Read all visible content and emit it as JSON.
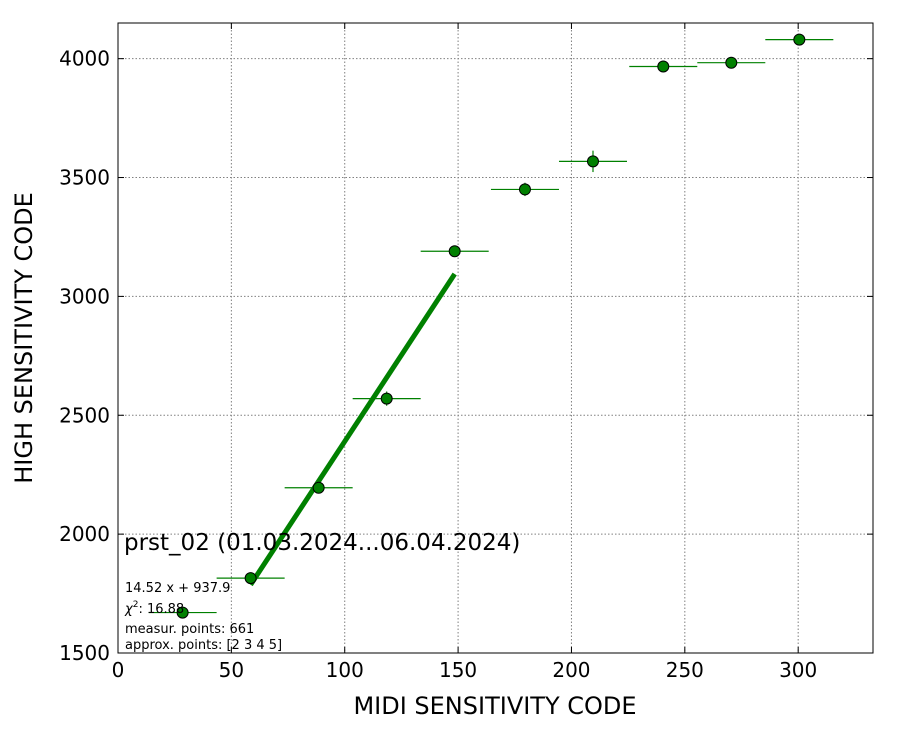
{
  "chart_data": {
    "type": "scatter",
    "title": "prst_02 (01.03.2024...06.04.2024)",
    "xlabel": "MIDI SENSITIVITY CODE",
    "ylabel": "HIGH SENSITIVITY CODE",
    "xlim": [
      0,
      333
    ],
    "ylim": [
      1500,
      4150
    ],
    "xticks": [
      0,
      50,
      100,
      150,
      200,
      250,
      300
    ],
    "yticks": [
      1500,
      2000,
      2500,
      3000,
      3500,
      4000
    ],
    "grid": true,
    "series": [
      {
        "type": "errorbar-scatter",
        "color": "#008000",
        "points": [
          {
            "x": 28.5,
            "y": 1670,
            "xerr": 15,
            "yerr": 10
          },
          {
            "x": 58.5,
            "y": 1815,
            "xerr": 15,
            "yerr": 12
          },
          {
            "x": 88.5,
            "y": 2195,
            "xerr": 15,
            "yerr": 12
          },
          {
            "x": 118.5,
            "y": 2570,
            "xerr": 15,
            "yerr": 30
          },
          {
            "x": 148.5,
            "y": 3190,
            "xerr": 15,
            "yerr": 22
          },
          {
            "x": 179.5,
            "y": 3450,
            "xerr": 15,
            "yerr": 28
          },
          {
            "x": 209.5,
            "y": 3568,
            "xerr": 15,
            "yerr": 45
          },
          {
            "x": 240.5,
            "y": 3967,
            "xerr": 15,
            "yerr": 10
          },
          {
            "x": 270.5,
            "y": 3983,
            "xerr": 15,
            "yerr": 10
          },
          {
            "x": 300.5,
            "y": 4080,
            "xerr": 15,
            "yerr": 10
          }
        ]
      },
      {
        "type": "fit-line",
        "color": "#008000",
        "slope": 14.52,
        "intercept": 937.9,
        "x_range": [
          58.5,
          148.5
        ]
      }
    ],
    "annotations": {
      "fit": "14.52 x + 937.9",
      "chi_symbol": "χ",
      "chi_power": "2",
      "chi_value": ": 16.88",
      "measur": "measur. points: 661",
      "approx": "approx. points: [2 3 4 5]"
    }
  }
}
